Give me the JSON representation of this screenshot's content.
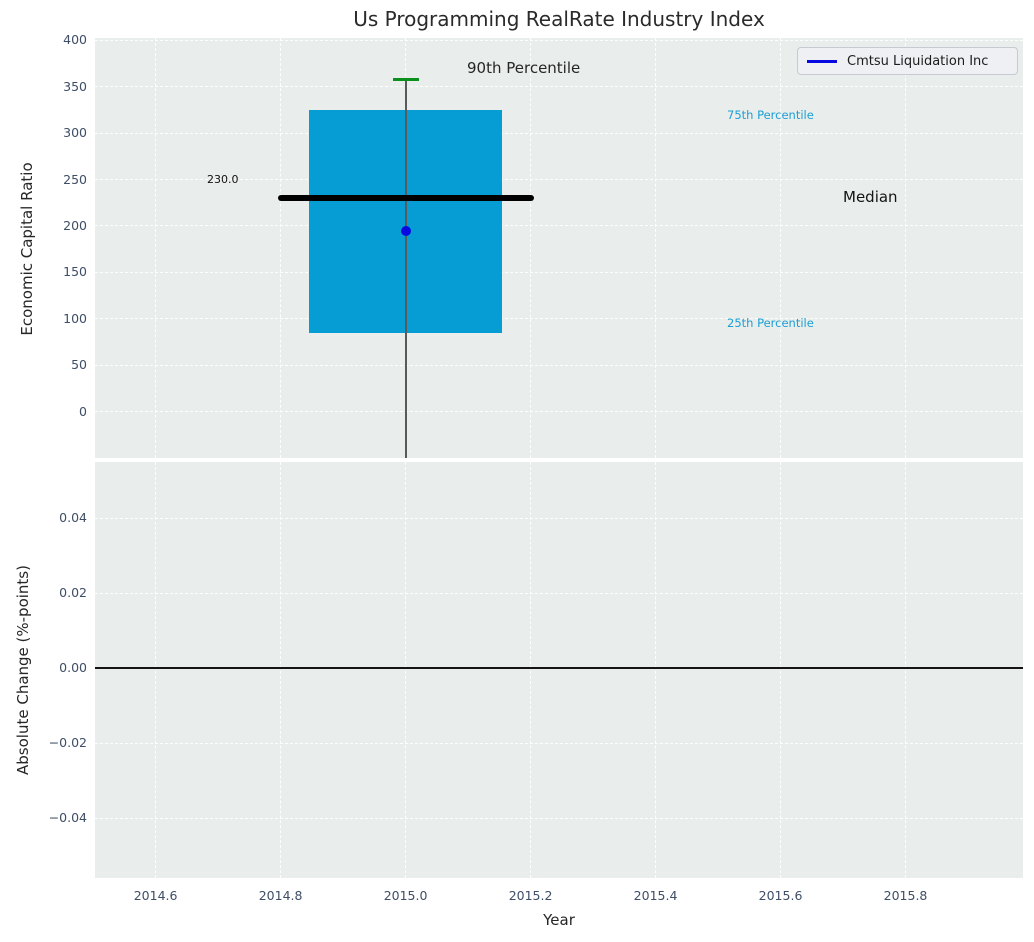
{
  "title": "Us Programming RealRate Industry Index",
  "chart_data": [
    {
      "type": "box",
      "subplot": "top",
      "title": "Us Programming RealRate Industry Index",
      "ylabel": "Economic Capital Ratio",
      "x": 2015.0,
      "ylim": [
        -50,
        402.5
      ],
      "grid": true,
      "box": {
        "q3": 325,
        "q1": 85,
        "median": 230,
        "p90": 358,
        "p10": -50,
        "width_years": 0.31
      },
      "median_value_label": "230.0",
      "company_point": {
        "x": 2015.0,
        "y": 195,
        "name": "Cmtsu Liquidation Inc"
      },
      "annotations": {
        "p90": "90th Percentile",
        "p75": "75th Percentile",
        "median": "Median",
        "p25": "25th Percentile"
      },
      "legend": {
        "position": "upper right",
        "entries": [
          {
            "label": "Cmtsu Liquidation Inc",
            "color": "#0808e0"
          }
        ]
      },
      "yticks": [
        {
          "v": 400,
          "label": "400"
        },
        {
          "v": 350,
          "label": "350"
        },
        {
          "v": 300,
          "label": "300"
        },
        {
          "v": 250,
          "label": "250"
        },
        {
          "v": 200,
          "label": "200"
        },
        {
          "v": 150,
          "label": "150"
        },
        {
          "v": 100,
          "label": "100"
        },
        {
          "v": 50,
          "label": "50"
        },
        {
          "v": 0,
          "label": "0"
        }
      ],
      "colors": {
        "box_fill": "#059dd3",
        "median_line": "#000000",
        "whisker": "#5a5a5a",
        "p90_cap": "#0b8f1d",
        "company_point": "#0808e0",
        "percentile_text": "#1b9fd4",
        "axes_background": "#e9edec"
      }
    },
    {
      "type": "line",
      "subplot": "bottom",
      "xlabel": "Year",
      "ylabel": "Absolute Change (%-points)",
      "xlim": [
        2014.503,
        2015.988
      ],
      "ylim": [
        -0.056,
        0.055
      ],
      "grid": true,
      "series": [],
      "zero_line": 0.0,
      "xticks": [
        {
          "v": 2014.6,
          "label": "2014.6"
        },
        {
          "v": 2014.8,
          "label": "2014.8"
        },
        {
          "v": 2015.0,
          "label": "2015.0"
        },
        {
          "v": 2015.2,
          "label": "2015.2"
        },
        {
          "v": 2015.4,
          "label": "2015.4"
        },
        {
          "v": 2015.6,
          "label": "2015.6"
        },
        {
          "v": 2015.8,
          "label": "2015.8"
        }
      ],
      "yticks": [
        {
          "v": 0.04,
          "label": "0.04"
        },
        {
          "v": 0.02,
          "label": "0.02"
        },
        {
          "v": 0.0,
          "label": "0.00"
        },
        {
          "v": -0.02,
          "label": "−0.02"
        },
        {
          "v": -0.04,
          "label": "−0.04"
        }
      ]
    }
  ]
}
